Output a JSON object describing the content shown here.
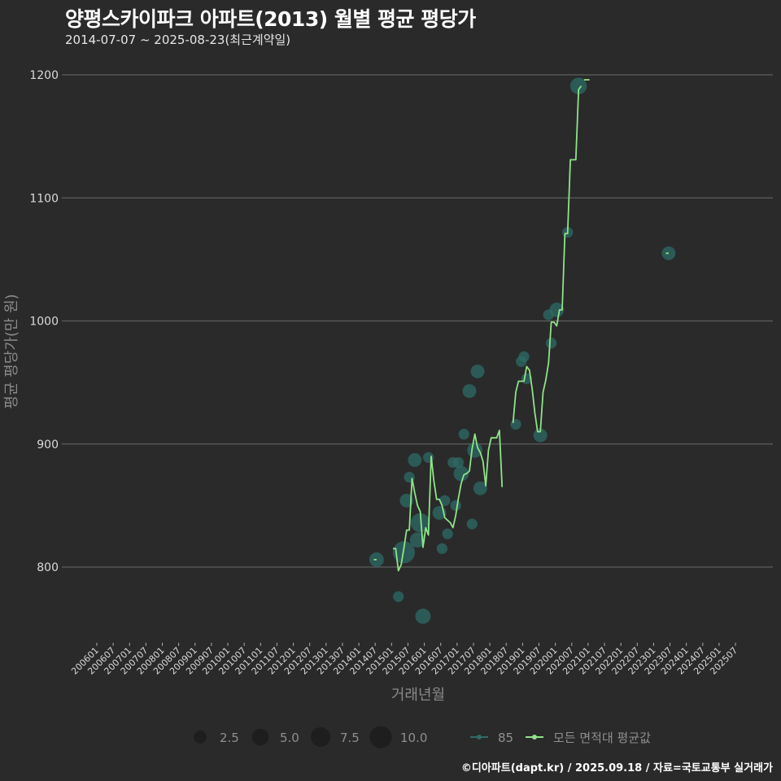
{
  "header": {
    "title": "양평스카이파크 아파트(2013) 월별 평균 평당가",
    "subtitle": "2014-07-07 ~ 2025-08-23(최근계약일)"
  },
  "footer": {
    "caption": "©디아파트(dapt.kr) / 2025.09.18 / 자료=국토교통부 실거래가"
  },
  "colors": {
    "background": "#2a2a2b",
    "gridline": "#5e5e5e",
    "line_all_avg": "#8fe388",
    "point_85": "#2e6b66",
    "legend_size_dot": "#1e1e1f"
  },
  "chart_data": {
    "type": "line",
    "title": "양평스카이파크 아파트(2013) 월별 평균 평당가",
    "subtitle": "2014-07-07 ~ 2025-08-23(최근계약일)",
    "xlabel": "거래년월",
    "ylabel": "평균 평당가(만 원)",
    "ylim": [
      740,
      1215
    ],
    "yticks": [
      800,
      900,
      1000,
      1100,
      1200
    ],
    "grid": "horizontal",
    "x_ticks": [
      "200601",
      "200607",
      "200701",
      "200707",
      "200801",
      "200807",
      "200901",
      "200907",
      "201001",
      "201007",
      "201101",
      "201107",
      "201201",
      "201207",
      "201301",
      "201307",
      "201401",
      "201407",
      "201501",
      "201507",
      "201601",
      "201607",
      "201701",
      "201707",
      "201801",
      "201807",
      "201901",
      "201907",
      "202001",
      "202007",
      "202101",
      "202107",
      "202201",
      "202207",
      "202301",
      "202307",
      "202401",
      "202407",
      "202501",
      "202507"
    ],
    "legend_position": "bottom",
    "legend": {
      "size_title": "",
      "size_entries": [
        {
          "label": "2.5",
          "value": 2.5
        },
        {
          "label": "5.0",
          "value": 5.0
        },
        {
          "label": "7.5",
          "value": 7.5
        },
        {
          "label": "10.0",
          "value": 10.0
        }
      ],
      "series_entries": [
        {
          "label": "85",
          "color": "#2e6b66"
        },
        {
          "label": "모든 면적대 평균값",
          "color": "#8fe388"
        }
      ]
    },
    "series": [
      {
        "name": "모든 면적대 평균값",
        "type": "line",
        "segments": [
          [
            [
              "201406",
              806
            ],
            [
              "201407",
              806
            ]
          ],
          [
            [
              "201501",
              815
            ],
            [
              "201502",
              815
            ],
            [
              "201503",
              797
            ],
            [
              "201504",
              802
            ],
            [
              "201505",
              815
            ],
            [
              "201506",
              830
            ],
            [
              "201507",
              830
            ],
            [
              "201508",
              872
            ],
            [
              "201509",
              860
            ],
            [
              "201510",
              850
            ],
            [
              "201511",
              845
            ],
            [
              "201512",
              816
            ],
            [
              "201601",
              832
            ],
            [
              "201602",
              826
            ],
            [
              "201603",
              890
            ],
            [
              "201604",
              870
            ],
            [
              "201605",
              855
            ],
            [
              "201606",
              855
            ],
            [
              "201607",
              850
            ],
            [
              "201608",
              840
            ],
            [
              "201609",
              838
            ],
            [
              "201610",
              836
            ],
            [
              "201611",
              832
            ],
            [
              "201612",
              842
            ],
            [
              "201701",
              856
            ],
            [
              "201702",
              868
            ],
            [
              "201703",
              875
            ],
            [
              "201704",
              876
            ],
            [
              "201705",
              878
            ],
            [
              "201706",
              896
            ],
            [
              "201707",
              908
            ],
            [
              "201708",
              897
            ],
            [
              "201709",
              893
            ],
            [
              "201710",
              886
            ],
            [
              "201711",
              866
            ],
            [
              "201712",
              895
            ],
            [
              "201801",
              905
            ],
            [
              "201802",
              905
            ],
            [
              "201803",
              905
            ],
            [
              "201804",
              911
            ],
            [
              "201805",
              865
            ]
          ],
          [
            [
              "201809",
              917
            ],
            [
              "201810",
              942
            ],
            [
              "201811",
              951
            ],
            [
              "201812",
              951
            ],
            [
              "201901",
              951
            ],
            [
              "201902",
              963
            ],
            [
              "201903",
              960
            ],
            [
              "201904",
              945
            ],
            [
              "201905",
              925
            ],
            [
              "201906",
              910
            ],
            [
              "201907",
              910
            ],
            [
              "201908",
              942
            ],
            [
              "201909",
              952
            ],
            [
              "201910",
              966
            ],
            [
              "201911",
              999
            ],
            [
              "201912",
              999
            ],
            [
              "202001",
              996
            ],
            [
              "202002",
              1009
            ],
            [
              "202003",
              1009
            ],
            [
              "202004",
              1071
            ],
            [
              "202005",
              1071
            ],
            [
              "202006",
              1131
            ],
            [
              "202007",
              1131
            ],
            [
              "202008",
              1131
            ],
            [
              "202009",
              1188
            ],
            [
              "202010",
              1191
            ]
          ],
          [
            [
              "202011",
              1196
            ],
            [
              "202101",
              1196
            ]
          ],
          [
            [
              "202305",
              1055
            ],
            [
              "202306",
              1055
            ]
          ]
        ]
      },
      {
        "name": "85",
        "type": "scatter",
        "points": [
          {
            "x": "201407",
            "y": 806,
            "size": 3.5
          },
          {
            "x": "201503",
            "y": 776,
            "size": 1.5
          },
          {
            "x": "201505",
            "y": 812,
            "size": 10.0
          },
          {
            "x": "201506",
            "y": 854,
            "size": 3.0
          },
          {
            "x": "201507",
            "y": 873,
            "size": 1.5
          },
          {
            "x": "201509",
            "y": 887,
            "size": 3.0
          },
          {
            "x": "201510",
            "y": 822,
            "size": 4.0
          },
          {
            "x": "201511",
            "y": 836,
            "size": 7.0
          },
          {
            "x": "201512",
            "y": 760,
            "size": 4.0
          },
          {
            "x": "201602",
            "y": 889,
            "size": 1.5
          },
          {
            "x": "201606",
            "y": 844,
            "size": 3.0
          },
          {
            "x": "201607",
            "y": 815,
            "size": 1.5
          },
          {
            "x": "201608",
            "y": 854,
            "size": 1.5
          },
          {
            "x": "201609",
            "y": 827,
            "size": 1.5
          },
          {
            "x": "201611",
            "y": 885,
            "size": 1.5
          },
          {
            "x": "201612",
            "y": 850,
            "size": 1.5
          },
          {
            "x": "201701",
            "y": 885,
            "size": 1.5
          },
          {
            "x": "201702",
            "y": 876,
            "size": 4.0
          },
          {
            "x": "201703",
            "y": 908,
            "size": 1.5
          },
          {
            "x": "201705",
            "y": 943,
            "size": 3.0
          },
          {
            "x": "201706",
            "y": 835,
            "size": 1.5
          },
          {
            "x": "201707",
            "y": 895,
            "size": 4.0
          },
          {
            "x": "201708",
            "y": 959,
            "size": 3.0
          },
          {
            "x": "201709",
            "y": 864,
            "size": 3.0
          },
          {
            "x": "201810",
            "y": 916,
            "size": 1.5
          },
          {
            "x": "201812",
            "y": 967,
            "size": 1.5
          },
          {
            "x": "201901",
            "y": 971,
            "size": 1.5
          },
          {
            "x": "201902",
            "y": 953,
            "size": 1.5
          },
          {
            "x": "201907",
            "y": 907,
            "size": 3.0
          },
          {
            "x": "201910",
            "y": 1005,
            "size": 1.5
          },
          {
            "x": "201911",
            "y": 982,
            "size": 1.5
          },
          {
            "x": "202001",
            "y": 1009,
            "size": 3.5
          },
          {
            "x": "202005",
            "y": 1072,
            "size": 1.5
          },
          {
            "x": "202009",
            "y": 1191,
            "size": 5.0
          },
          {
            "x": "202306",
            "y": 1055,
            "size": 3.0
          }
        ]
      }
    ]
  }
}
